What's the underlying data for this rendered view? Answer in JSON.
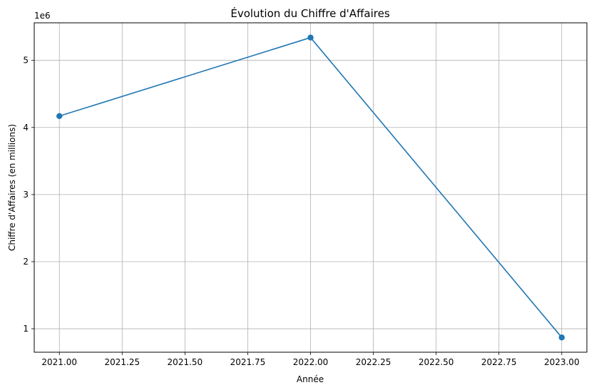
{
  "chart_data": {
    "type": "line",
    "title": "Évolution du Chiffre d'Affaires",
    "xlabel": "Année",
    "ylabel": "Chiffre d'Affaires (en millions)",
    "y_offset_label": "1e6",
    "x_ticks": [
      2021.0,
      2021.25,
      2021.5,
      2021.75,
      2022.0,
      2022.25,
      2022.5,
      2022.75,
      2023.0
    ],
    "x_tick_labels": [
      "2021.00",
      "2021.25",
      "2021.50",
      "2021.75",
      "2022.00",
      "2022.25",
      "2022.50",
      "2022.75",
      "2023.00"
    ],
    "y_ticks": [
      1000000,
      2000000,
      3000000,
      4000000,
      5000000
    ],
    "y_tick_labels": [
      "1",
      "2",
      "3",
      "4",
      "5"
    ],
    "xlim": [
      2020.9,
      2023.1
    ],
    "ylim": [
      650000,
      5560000
    ],
    "grid": true,
    "series": [
      {
        "color": "#1f77b4",
        "marker": "circle",
        "x": [
          2021,
          2022,
          2023
        ],
        "values": [
          4170000,
          5340000,
          870000
        ]
      }
    ]
  }
}
